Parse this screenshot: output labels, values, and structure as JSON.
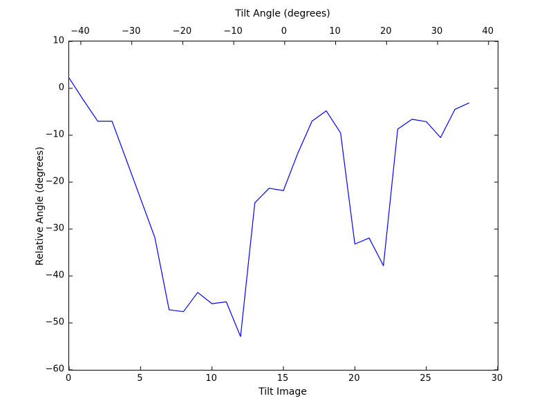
{
  "figure": {
    "background": "#ffffff",
    "axis_color": "#000000",
    "line_color": "#0000ff"
  },
  "chart_data": {
    "type": "line",
    "title": "",
    "top_xlabel": "Tilt Angle (degrees)",
    "bottom_xlabel": "Tilt Image",
    "ylabel": "Relative Angle (degrees)",
    "bottom_xlim": [
      0,
      30
    ],
    "top_xlim": [
      -42.3,
      41.8
    ],
    "ylim": [
      -60,
      10
    ],
    "bottom_xticks": [
      0,
      5,
      10,
      15,
      20,
      25,
      30
    ],
    "top_xticks": [
      -40,
      -30,
      -20,
      -10,
      0,
      10,
      20,
      30,
      40
    ],
    "yticks": [
      10,
      0,
      -10,
      -20,
      -30,
      -40,
      -50,
      -60
    ],
    "grid": false,
    "legend": null,
    "series": [
      {
        "name": "relative-angle",
        "color": "#0000ff",
        "x": [
          0,
          1,
          2,
          3,
          4,
          5,
          6,
          7,
          8,
          9,
          10,
          11,
          12,
          13,
          14,
          15,
          16,
          17,
          18,
          19,
          20,
          21,
          22,
          23,
          24,
          25,
          26,
          27,
          28
        ],
        "y": [
          2.2,
          -2.5,
          -7.0,
          -7.0,
          -15.2,
          -23.5,
          -31.8,
          -47.2,
          -47.6,
          -43.5,
          -45.9,
          -45.5,
          -52.9,
          -24.4,
          -21.3,
          -21.8,
          -13.9,
          -7.0,
          -4.8,
          -9.5,
          -33.2,
          -31.9,
          -37.8,
          -8.7,
          -6.6,
          -7.1,
          -10.5,
          -4.5,
          -3.1
        ]
      }
    ]
  }
}
